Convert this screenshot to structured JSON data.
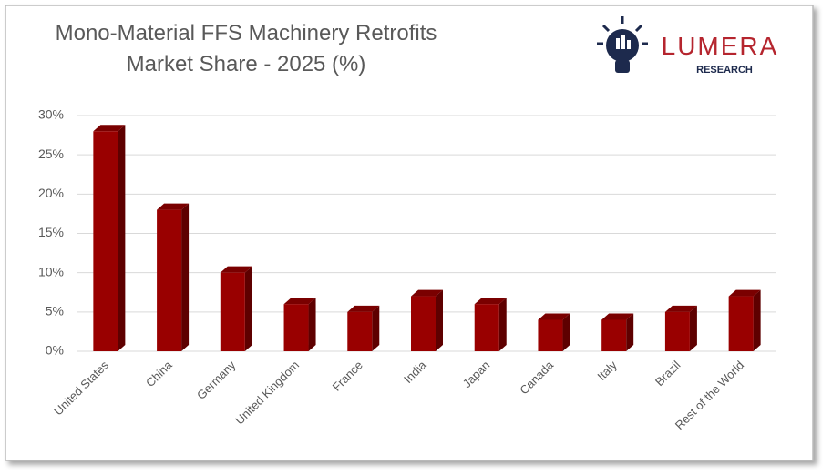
{
  "chart_data": {
    "type": "bar",
    "title": [
      "Mono-Material FFS Machinery Retrofits",
      "Market Share - 2025 (%)"
    ],
    "logo": {
      "name": "LUMERA",
      "tagline": "RESEARCH"
    },
    "categories": [
      "United States",
      "China",
      "Germany",
      "United Kingdom",
      "France",
      "India",
      "Japan",
      "Canada",
      "Italy",
      "Brazil",
      "Rest of the World"
    ],
    "values": [
      28,
      18,
      10,
      6,
      5,
      7,
      6,
      4,
      4,
      5,
      7
    ],
    "color": "#990000",
    "ylim": [
      0,
      30
    ],
    "yticks": [
      {
        "value": 0,
        "label": "0%"
      },
      {
        "value": 5,
        "label": "5%"
      },
      {
        "value": 10,
        "label": "10%"
      },
      {
        "value": 15,
        "label": "15%"
      },
      {
        "value": 20,
        "label": "20%"
      },
      {
        "value": 25,
        "label": "25%"
      },
      {
        "value": 30,
        "label": "30%"
      }
    ],
    "grid": true
  }
}
